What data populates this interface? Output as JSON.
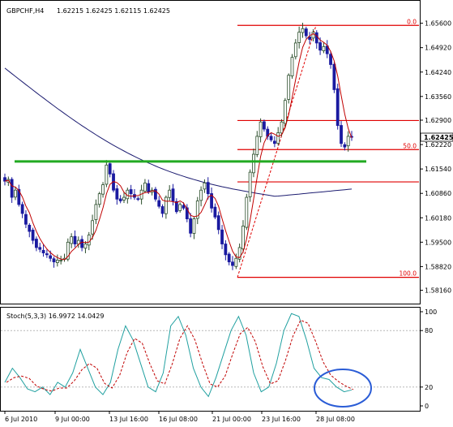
{
  "header": {
    "symbol": "GBPCHF,H4",
    "ohlc": "1.62215 1.62425 1.62115 1.62425"
  },
  "indicator_header": "Stoch(5,3,3) 16.9972 14.0429",
  "colors": {
    "background": "#ffffff",
    "bull_candle": "#2a4d2a",
    "bear_candle": "#1a1aa0",
    "sma_long": "#1c1c70",
    "sma_short": "#c00000",
    "fib_level": "#e00000",
    "support_line": "#22aa22",
    "stoch_main": "#20a0a0",
    "stoch_signal": "#c00000",
    "highlight_ellipse": "#2a5cd6",
    "current_price_bg": "#ffffff"
  },
  "chart_data": [
    {
      "type": "candlestick",
      "symbol": "GBPCHF",
      "timeframe": "H4",
      "y_ticks": [
        "1.65600",
        "1.64920",
        "1.64240",
        "1.63560",
        "1.62900",
        "1.62220",
        "1.61540",
        "1.60860",
        "1.60180",
        "1.59500",
        "1.58820",
        "1.58160"
      ],
      "ylim": [
        1.5806,
        1.6575
      ],
      "current_price": "1.62425",
      "x_ticks": [
        "6 Jul 2010",
        "9 Jul 00:00",
        "13 Jul 16:00",
        "16 Jul 08:00",
        "21 Jul 00:00",
        "23 Jul 16:00",
        "28 Jul 08:00"
      ],
      "close_path": [
        1.612,
        1.6125,
        1.6075,
        1.6095,
        1.6055,
        1.603,
        1.6,
        1.598,
        1.5955,
        1.5935,
        1.593,
        1.592,
        1.5915,
        1.5905,
        1.5895,
        1.59,
        1.59,
        1.5905,
        1.595,
        1.5965,
        1.5945,
        1.5955,
        1.5935,
        1.5945,
        1.597,
        1.601,
        1.6055,
        1.6085,
        1.611,
        1.6165,
        1.614,
        1.6095,
        1.607,
        1.6065,
        1.6075,
        1.6095,
        1.6085,
        1.6075,
        1.607,
        1.6095,
        1.6115,
        1.609,
        1.6095,
        1.607,
        1.605,
        1.603,
        1.6075,
        1.6095,
        1.6065,
        1.6035,
        1.6055,
        1.6045,
        1.6015,
        1.5975,
        1.6015,
        1.6065,
        1.6095,
        1.6115,
        1.6085,
        1.6045,
        1.602,
        1.5985,
        1.5945,
        1.5915,
        1.5895,
        1.5885,
        1.5905,
        1.5935,
        1.5995,
        1.6075,
        1.6145,
        1.6195,
        1.6245,
        1.6285,
        1.6265,
        1.6245,
        1.6235,
        1.6225,
        1.6255,
        1.6285,
        1.6345,
        1.6415,
        1.6465,
        1.6505,
        1.6535,
        1.6545,
        1.6525,
        1.6515,
        1.6535,
        1.6505,
        1.6485,
        1.6495,
        1.6475,
        1.6445,
        1.6375,
        1.6275,
        1.6225,
        1.6215,
        1.6245,
        1.62425
      ],
      "sma_long": {
        "start": 1.6435,
        "end": 1.6098
      },
      "support_level": 1.6175,
      "fibonacci": {
        "levels": [
          {
            "label": "0.0",
            "value": 1.6554
          },
          {
            "label": "",
            "value": 1.6289
          },
          {
            "label": "50.0",
            "value": 1.6208
          },
          {
            "label": "",
            "value": 1.6118
          },
          {
            "label": "100.0",
            "value": 1.5852
          }
        ]
      }
    },
    {
      "type": "line",
      "name": "Stoch(5,3,3)",
      "main_value": "16.9972",
      "signal_value": "14.0429",
      "y_ticks": [
        "100",
        "80",
        "20",
        "0"
      ],
      "ylim": [
        0,
        100
      ],
      "levels": [
        80,
        20
      ],
      "main_path": [
        25,
        40,
        30,
        18,
        15,
        20,
        12,
        25,
        20,
        35,
        60,
        40,
        20,
        12,
        25,
        60,
        85,
        70,
        45,
        20,
        15,
        35,
        85,
        95,
        75,
        40,
        20,
        10,
        30,
        55,
        80,
        95,
        75,
        35,
        15,
        20,
        45,
        80,
        98,
        95,
        70,
        40,
        30,
        28,
        20,
        15,
        17
      ]
    }
  ]
}
